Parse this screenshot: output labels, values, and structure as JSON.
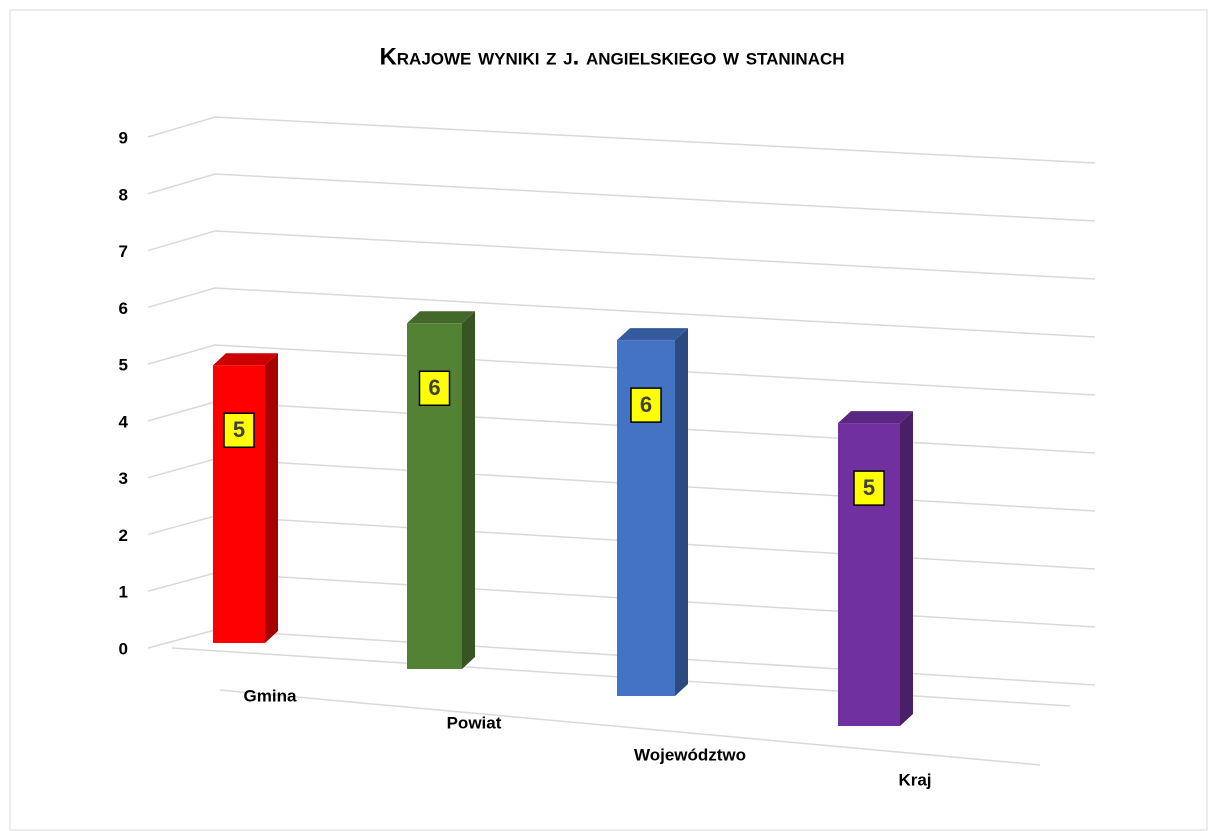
{
  "chart_data": {
    "type": "bar3d",
    "title": "Krajowe wyniki z j. angielskiego w staninach",
    "categories": [
      "Gmina",
      "Powiat",
      "Województwo",
      "Kraj"
    ],
    "values": [
      4.96,
      5.86,
      5.74,
      4.66
    ],
    "value_labels": [
      "5",
      "6",
      "6",
      "5"
    ],
    "colors": [
      "#ff0000",
      "#548235",
      "#4472c4",
      "#7030a0"
    ],
    "ylim": [
      0,
      9
    ],
    "yticks": [
      0,
      1,
      2,
      3,
      4,
      5,
      6,
      7,
      8,
      9
    ],
    "grid": true
  }
}
